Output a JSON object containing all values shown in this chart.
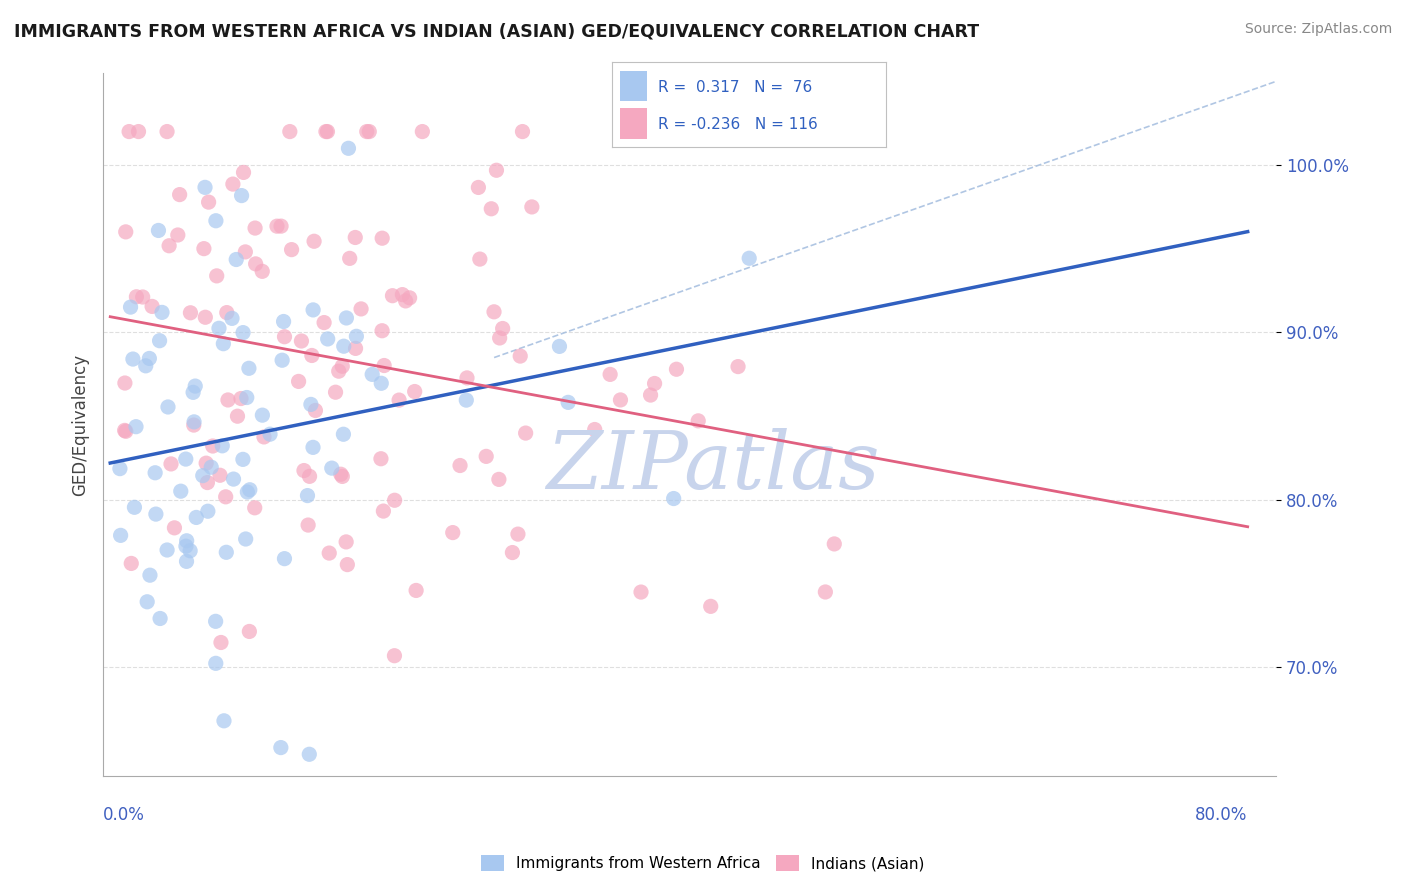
{
  "title": "IMMIGRANTS FROM WESTERN AFRICA VS INDIAN (ASIAN) GED/EQUIVALENCY CORRELATION CHART",
  "source": "Source: ZipAtlas.com",
  "ylabel": "GED/Equivalency",
  "ytick_values": [
    0.7,
    0.8,
    0.9,
    1.0
  ],
  "xlim": [
    -0.005,
    0.82
  ],
  "ylim": [
    0.635,
    1.055
  ],
  "legend_blue_label": "Immigrants from Western Africa",
  "legend_pink_label": "Indians (Asian)",
  "r_blue": 0.317,
  "n_blue": 76,
  "r_pink": -0.236,
  "n_pink": 116,
  "blue_color": "#A8C8F0",
  "pink_color": "#F5A8C0",
  "blue_line_color": "#3060C0",
  "pink_line_color": "#E06080",
  "ref_line_color": "#A8C0E0",
  "background_color": "#FFFFFF",
  "grid_color": "#D8D8D8",
  "watermark_color": "#C8D4EC"
}
